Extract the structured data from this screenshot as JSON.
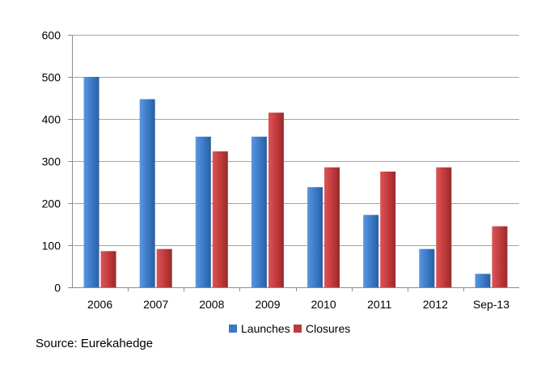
{
  "source": "Source: Eurekahedge",
  "colors": {
    "launches": "#3a78c6",
    "closures": "#c0393b",
    "grid": "#a6a6a6",
    "axis": "#8c8c8c"
  },
  "chart_data": {
    "type": "bar",
    "title": "",
    "xlabel": "",
    "ylabel": "",
    "ylim": [
      0,
      600
    ],
    "yticks": [
      0,
      100,
      200,
      300,
      400,
      500,
      600
    ],
    "grid": true,
    "legend_position": "bottom",
    "categories": [
      "2006",
      "2007",
      "2008",
      "2009",
      "2010",
      "2011",
      "2012",
      "Sep-13"
    ],
    "series": [
      {
        "name": "Launches",
        "color": "#3a78c6",
        "values": [
          500,
          447,
          358,
          358,
          238,
          172,
          91,
          32
        ]
      },
      {
        "name": "Closures",
        "color": "#c0393b",
        "values": [
          86,
          91,
          323,
          415,
          285,
          275,
          285,
          145
        ]
      }
    ]
  }
}
